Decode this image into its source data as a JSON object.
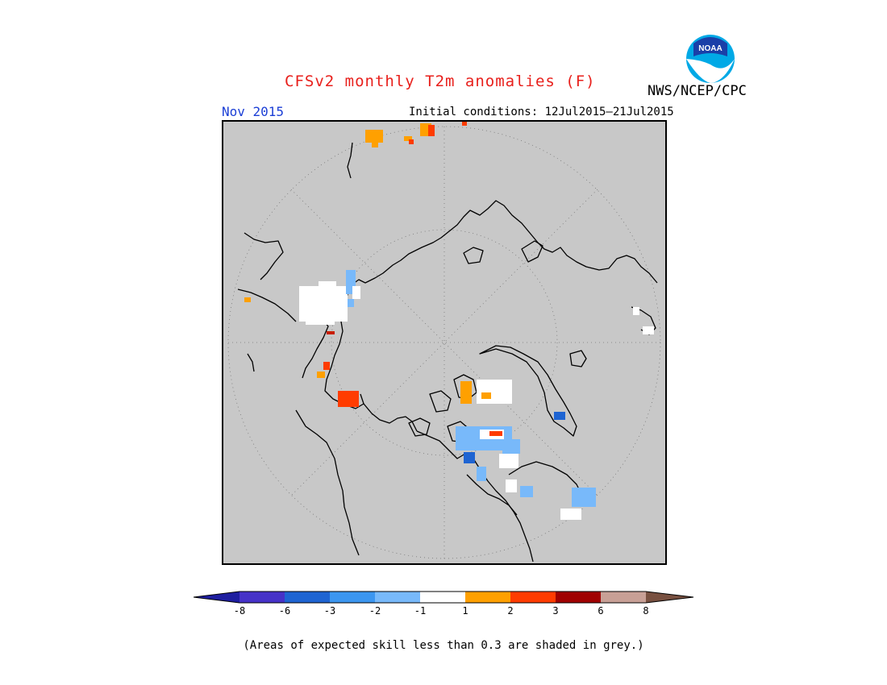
{
  "header": {
    "title": "CFSv2 monthly T2m anomalies (F)",
    "forecast_month": "Nov 2015",
    "initial_conditions": "Initial conditions: 12Jul2015–21Jul2015",
    "agency": "NWS/NCEP/CPC",
    "logo_text": "NOAA"
  },
  "map": {
    "projection": "north-polar-stereographic",
    "land_ocean_color": "#c8c8c8",
    "coastline_color": "#000000",
    "graticule": "dotted"
  },
  "legend": {
    "tick_labels": [
      "-8",
      "-6",
      "-3",
      "-2",
      "-1",
      "1",
      "2",
      "3",
      "6",
      "8"
    ],
    "colors": [
      "#1e1ea0",
      "#4632c8",
      "#1e64d2",
      "#3c96f0",
      "#78b9fa",
      "#ffffff",
      "#ffa000",
      "#ff3c00",
      "#a00000",
      "#c8a096",
      "#785040"
    ],
    "footnote": "(Areas of expected skill less than 0.3 are shaded in grey.)"
  },
  "anomaly_colors": {
    "white": "#ffffff",
    "light_blue": "#78b9fa",
    "blue": "#3c96f0",
    "dark_blue": "#1e64d2",
    "orange": "#ffa000",
    "red": "#ff3c00",
    "dark_red": "#c81e00"
  }
}
